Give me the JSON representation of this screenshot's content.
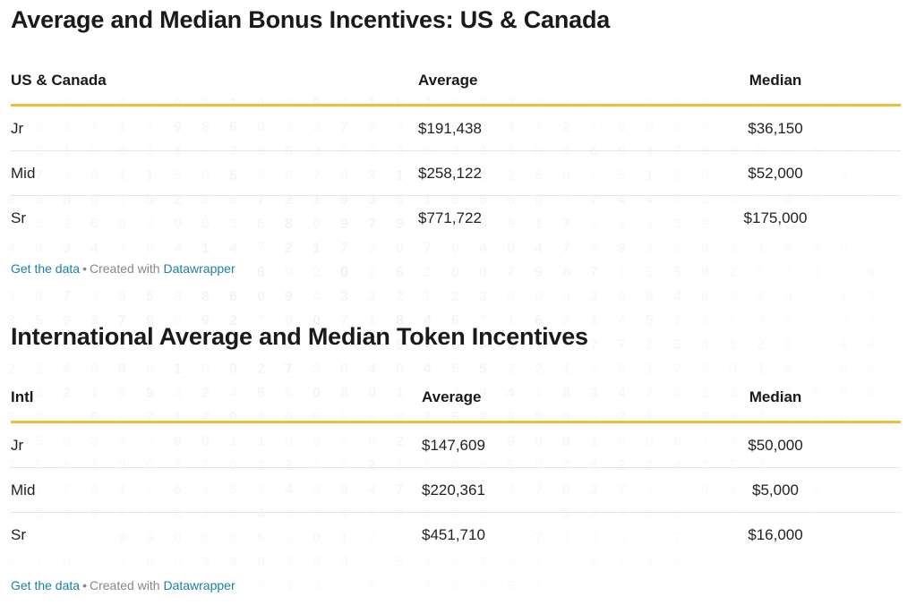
{
  "chart_data": [
    {
      "type": "table",
      "title": "Average and Median Bonus Incentives: US & Canada",
      "columns": [
        "US & Canada",
        "Average",
        "Median"
      ],
      "rows": [
        {
          "label": "Jr",
          "average": "$191,438",
          "median": "$36,150"
        },
        {
          "label": "Mid",
          "average": "$258,122",
          "median": "$52,000"
        },
        {
          "label": "Sr",
          "average": "$771,722",
          "median": "$175,000"
        }
      ],
      "footer": {
        "get_data": "Get the data",
        "separator": "•",
        "created_with": "Created with",
        "tool": "Datawrapper"
      }
    },
    {
      "type": "table",
      "title": "International Average and Median Token Incentives",
      "columns": [
        "Intl",
        "Average",
        "Median"
      ],
      "rows": [
        {
          "label": "Jr",
          "average": "$147,609",
          "median": "$50,000"
        },
        {
          "label": "Mid",
          "average": "$220,361",
          "median": "$5,000"
        },
        {
          "label": "Sr",
          "average": "$451,710",
          "median": "$16,000"
        }
      ],
      "footer": {
        "get_data": "Get the data",
        "separator": "•",
        "created_with": "Created with",
        "tool": "Datawrapper"
      }
    }
  ],
  "colors": {
    "header_rule": "#efc033",
    "link": "#1d81a2",
    "muted_text": "#888888",
    "row_divider": "#e6e6e6"
  }
}
